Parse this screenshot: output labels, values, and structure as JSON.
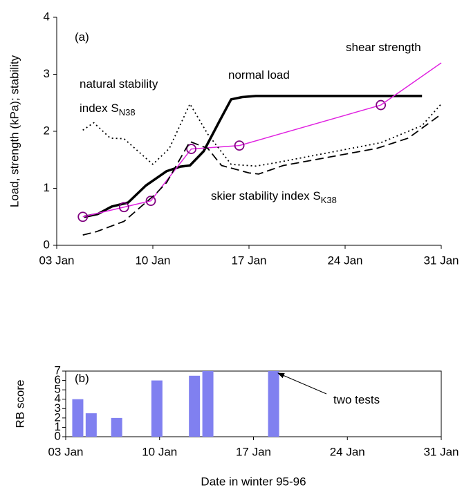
{
  "chart_data": [
    {
      "type": "line",
      "y_label": "Load, strength (kPa); stability",
      "xlim": [
        3,
        31
      ],
      "xticks": [
        {
          "value": 3,
          "label": "03 Jan"
        },
        {
          "value": 10,
          "label": "10 Jan"
        },
        {
          "value": 17,
          "label": "17 Jan"
        },
        {
          "value": 24,
          "label": "24 Jan"
        },
        {
          "value": 31,
          "label": "31 Jan"
        }
      ],
      "ylim": [
        0,
        4
      ],
      "yticks": [
        0,
        1,
        2,
        3,
        4
      ],
      "grid": false,
      "series": [
        {
          "color": "#000000",
          "style": "solid",
          "width": 3.5,
          "markers": false,
          "x": [
            5,
            6,
            7,
            8.2,
            9.5,
            11,
            12,
            12.7,
            13.7,
            14.9,
            15.7,
            16.5,
            17.5,
            29.6
          ],
          "values": [
            0.5,
            0.55,
            0.68,
            0.75,
            1.05,
            1.3,
            1.38,
            1.4,
            1.65,
            2.2,
            2.56,
            2.6,
            2.62,
            2.62
          ]
        },
        {
          "color": "#e020e0",
          "style": "solid",
          "width": 1.5,
          "markers": true,
          "x": [
            4.9,
            7.9,
            9.85,
            12.8,
            16.3,
            26.6
          ],
          "values": [
            0.5,
            0.67,
            0.78,
            1.69,
            1.75,
            2.46
          ]
        },
        {
          "color": "#e020e0",
          "style": "solid",
          "width": 1.5,
          "markers": false,
          "x": [
            26.6,
            31
          ],
          "values": [
            2.46,
            3.2
          ]
        },
        {
          "color": "#000000",
          "style": "dotted",
          "width": 1.8,
          "markers": false,
          "x": [
            4.9,
            5.7,
            6.9,
            7.9,
            10,
            11.2,
            12.7,
            14,
            15.7,
            17.5,
            19,
            26.6,
            29.6,
            31
          ],
          "values": [
            2.02,
            2.15,
            1.88,
            1.87,
            1.42,
            1.7,
            2.48,
            1.95,
            1.42,
            1.39,
            1.45,
            1.8,
            2.1,
            2.48
          ]
        },
        {
          "color": "#000000",
          "style": "dashed",
          "width": 1.8,
          "markers": false,
          "x": [
            4.9,
            5.9,
            7.9,
            10.2,
            11,
            12.7,
            14,
            15,
            17,
            17.7,
            19.5,
            26.3,
            28.6,
            31
          ],
          "values": [
            0.18,
            0.24,
            0.42,
            0.9,
            1.1,
            1.82,
            1.7,
            1.4,
            1.27,
            1.25,
            1.4,
            1.7,
            1.88,
            2.3
          ]
        }
      ],
      "annotations": [
        {
          "text": "(a)"
        },
        {
          "text": "shear strength"
        },
        {
          "text": "normal load"
        },
        {
          "text": "natural  stability"
        },
        {
          "text": "index S",
          "sub": "N38"
        },
        {
          "text": "skier stability index S",
          "sub": "K38"
        }
      ]
    },
    {
      "type": "bar",
      "x_label": "Date in winter 95-96",
      "y_label": "RB score",
      "xlim": [
        3,
        31
      ],
      "xticks": [
        {
          "value": 3,
          "label": "03 Jan"
        },
        {
          "value": 10,
          "label": "10 Jan"
        },
        {
          "value": 17,
          "label": "17 Jan"
        },
        {
          "value": 24,
          "label": "24 Jan"
        },
        {
          "value": 31,
          "label": "31 Jan"
        }
      ],
      "ylim": [
        0,
        7
      ],
      "yticks": [
        0,
        1,
        2,
        3,
        4,
        5,
        6,
        7
      ],
      "grid": false,
      "color": "#8080f0",
      "x": [
        3.9,
        4.9,
        6.8,
        9.8,
        12.6,
        13.6,
        18.5
      ],
      "values": [
        4,
        2.5,
        2,
        6,
        6.5,
        7,
        7
      ],
      "annotations": [
        {
          "text": "(b)"
        },
        {
          "text": "two tests"
        }
      ]
    }
  ]
}
